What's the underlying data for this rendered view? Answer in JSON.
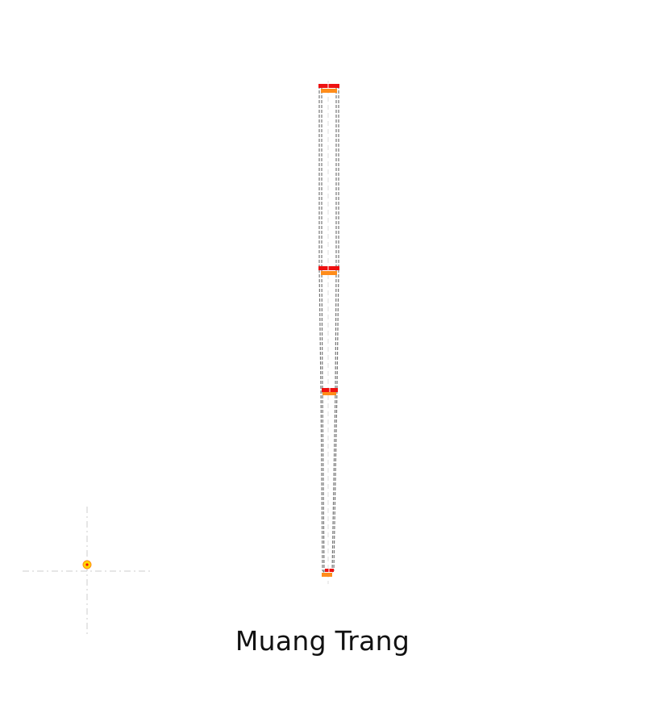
{
  "map": {
    "title": "Muang Trang",
    "outline_color": "#777777",
    "guide_color": "#cccccc",
    "marker_primary_color": "#ee1111",
    "marker_secondary_color": "#ff8c1a",
    "locator_color": "#ffd700"
  }
}
